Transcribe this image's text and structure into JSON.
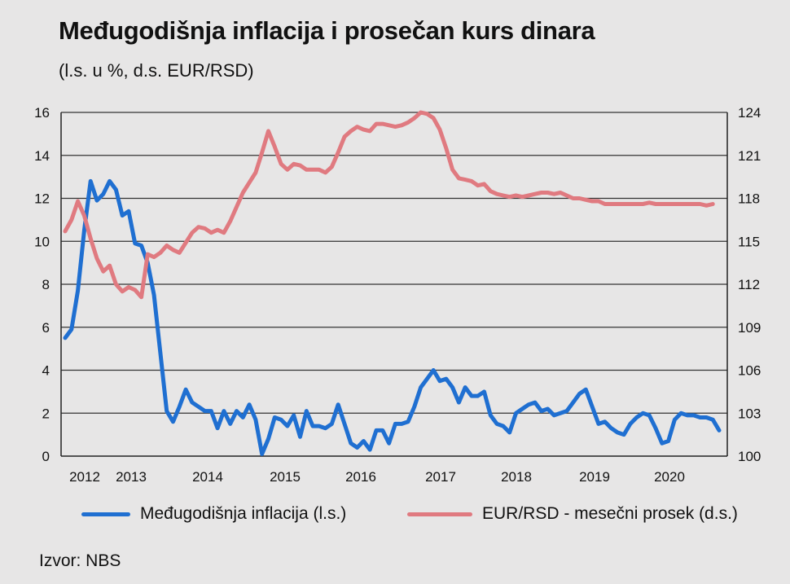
{
  "title": "Međugodišnja inflacija i prosečan kurs dinara",
  "subtitle": "(l.s. u %, d.s. EUR/RSD)",
  "source": "Izvor: NBS",
  "colors": {
    "inflation": "#1f6fd1",
    "fx": "#e07a80",
    "grid": "#333333",
    "background": "#e7e6e6"
  },
  "chart_data": {
    "type": "line",
    "title": "Međugodišnja inflacija i prosečan kurs dinara",
    "x_labels": [
      "2012",
      "2013",
      "2014",
      "2015",
      "2016",
      "2017",
      "2018",
      "2019",
      "2020"
    ],
    "y_left": {
      "min": 0,
      "max": 16,
      "step": 2,
      "ticks": [
        "0",
        "2",
        "4",
        "6",
        "8",
        "10",
        "12",
        "14",
        "16"
      ]
    },
    "y_right": {
      "min": 100,
      "max": 124,
      "step": 3,
      "ticks": [
        "100",
        "103",
        "106",
        "109",
        "112",
        "115",
        "118",
        "121",
        "124"
      ]
    },
    "grid": true,
    "legend_position": "bottom",
    "series": [
      {
        "name": "Međugodišnja inflacija (l.s.)",
        "axis": "left",
        "color": "#1f6fd1",
        "values": [
          5.5,
          5.9,
          7.7,
          10.5,
          12.8,
          11.9,
          12.2,
          12.8,
          12.4,
          11.2,
          11.4,
          9.9,
          9.8,
          9.0,
          7.5,
          4.8,
          2.1,
          1.6,
          2.3,
          3.1,
          2.5,
          2.3,
          2.1,
          2.1,
          1.3,
          2.1,
          1.5,
          2.1,
          1.8,
          2.4,
          1.7,
          0.1,
          0.8,
          1.8,
          1.7,
          1.4,
          1.9,
          0.9,
          2.1,
          1.4,
          1.4,
          1.3,
          1.5,
          2.4,
          1.5,
          0.6,
          0.4,
          0.7,
          0.3,
          1.2,
          1.2,
          0.6,
          1.5,
          1.5,
          1.6,
          2.3,
          3.2,
          3.6,
          4.0,
          3.5,
          3.6,
          3.2,
          2.5,
          3.2,
          2.8,
          2.8,
          3.0,
          1.9,
          1.5,
          1.4,
          1.1,
          2.0,
          2.2,
          2.4,
          2.5,
          2.1,
          2.2,
          1.9,
          2.0,
          2.1,
          2.5,
          2.9,
          3.1,
          2.3,
          1.5,
          1.6,
          1.3,
          1.1,
          1.0,
          1.5,
          1.8,
          2.0,
          1.9,
          1.3,
          0.6,
          0.7,
          1.7,
          2.0,
          1.9,
          1.9,
          1.8,
          1.8,
          1.7,
          1.2
        ]
      },
      {
        "name": "EUR/RSD - mesečni prosek (d.s.)",
        "axis": "right",
        "color": "#e07a80",
        "values": [
          115.7,
          116.5,
          117.8,
          116.8,
          115.2,
          113.8,
          112.9,
          113.3,
          112.0,
          111.5,
          111.8,
          111.6,
          111.1,
          114.1,
          113.9,
          114.2,
          114.7,
          114.4,
          114.2,
          114.9,
          115.6,
          116.0,
          115.9,
          115.6,
          115.8,
          115.6,
          116.4,
          117.4,
          118.4,
          119.1,
          119.8,
          121.2,
          122.7,
          121.6,
          120.4,
          120.0,
          120.4,
          120.3,
          120.0,
          120.0,
          120.0,
          119.8,
          120.2,
          121.2,
          122.3,
          122.7,
          123.0,
          122.8,
          122.7,
          123.2,
          123.2,
          123.1,
          123.0,
          123.1,
          123.3,
          123.6,
          124.0,
          123.9,
          123.6,
          122.8,
          121.5,
          120.0,
          119.4,
          119.3,
          119.2,
          118.9,
          119.0,
          118.5,
          118.3,
          118.2,
          118.1,
          118.2,
          118.1,
          118.2,
          118.3,
          118.4,
          118.4,
          118.3,
          118.4,
          118.2,
          118.0,
          118.0,
          117.9,
          117.8,
          117.8,
          117.6,
          117.6,
          117.6,
          117.6,
          117.6,
          117.6,
          117.6,
          117.7,
          117.6,
          117.6,
          117.6,
          117.6,
          117.6,
          117.6,
          117.6,
          117.6,
          117.5,
          117.6
        ]
      }
    ]
  }
}
